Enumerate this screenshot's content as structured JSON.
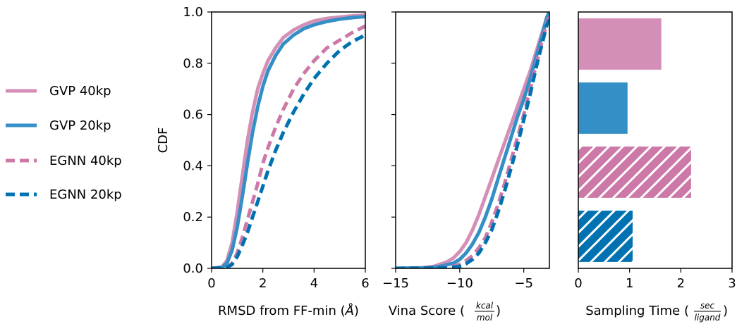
{
  "legend": {
    "placement": "left",
    "entries": [
      {
        "label": "GVP 40kp",
        "color": "#d48fb7",
        "style": "solid"
      },
      {
        "label": "GVP 20kp",
        "color": "#348fc7",
        "style": "solid"
      },
      {
        "label": "EGNN 40kp",
        "color": "#cc79a7",
        "style": "dashed"
      },
      {
        "label": "EGNN 20kp",
        "color": "#0072b2",
        "style": "dashed"
      }
    ]
  },
  "chart_data": [
    {
      "type": "line",
      "xlabel_main": "RMSD from FF-min (",
      "xlabel_unit": "Å",
      "xlabel_close": ")",
      "ylabel": "CDF",
      "xlim": [
        0,
        6
      ],
      "ylim": [
        0,
        1
      ],
      "xticks": [
        "0",
        "2",
        "4",
        "6"
      ],
      "yticks": [
        "0.0",
        "0.2",
        "0.4",
        "0.6",
        "0.8",
        "1.0"
      ],
      "series": [
        {
          "name": "GVP 40kp",
          "x": [
            0,
            0.4,
            0.6,
            0.8,
            1.0,
            1.2,
            1.4,
            1.6,
            1.8,
            2.0,
            2.2,
            2.5,
            2.8,
            3.2,
            3.6,
            4.0,
            4.5,
            5.0,
            5.5,
            6.0
          ],
          "y": [
            0,
            0.005,
            0.03,
            0.1,
            0.22,
            0.36,
            0.5,
            0.61,
            0.7,
            0.76,
            0.81,
            0.86,
            0.9,
            0.93,
            0.95,
            0.965,
            0.975,
            0.98,
            0.985,
            0.988
          ]
        },
        {
          "name": "GVP 20kp",
          "x": [
            0,
            0.4,
            0.6,
            0.8,
            1.0,
            1.2,
            1.4,
            1.6,
            1.8,
            2.0,
            2.2,
            2.5,
            2.8,
            3.2,
            3.6,
            4.0,
            4.5,
            5.0,
            5.5,
            6.0
          ],
          "y": [
            0,
            0.003,
            0.02,
            0.07,
            0.16,
            0.28,
            0.41,
            0.53,
            0.63,
            0.71,
            0.77,
            0.83,
            0.875,
            0.91,
            0.935,
            0.95,
            0.963,
            0.972,
            0.978,
            0.982
          ]
        },
        {
          "name": "EGNN 40kp",
          "x": [
            0,
            0.6,
            0.8,
            1.0,
            1.2,
            1.4,
            1.6,
            1.8,
            2.0,
            2.2,
            2.5,
            2.8,
            3.2,
            3.6,
            4.0,
            4.5,
            5.0,
            5.5,
            6.0
          ],
          "y": [
            0,
            0.005,
            0.02,
            0.06,
            0.12,
            0.19,
            0.26,
            0.33,
            0.41,
            0.47,
            0.55,
            0.62,
            0.7,
            0.76,
            0.81,
            0.86,
            0.89,
            0.92,
            0.945
          ]
        },
        {
          "name": "EGNN 20kp",
          "x": [
            0,
            0.6,
            0.8,
            1.0,
            1.2,
            1.4,
            1.6,
            1.8,
            2.0,
            2.2,
            2.5,
            2.8,
            3.2,
            3.6,
            4.0,
            4.5,
            5.0,
            5.5,
            6.0
          ],
          "y": [
            0,
            0.004,
            0.015,
            0.045,
            0.09,
            0.14,
            0.2,
            0.26,
            0.32,
            0.38,
            0.46,
            0.53,
            0.61,
            0.68,
            0.74,
            0.8,
            0.85,
            0.885,
            0.91
          ]
        }
      ]
    },
    {
      "type": "line",
      "xlabel_main": "Vina Score (",
      "xlabel_num": "kcal",
      "xlabel_den": "mol",
      "xlabel_close": ")",
      "xlim": [
        -15,
        -3
      ],
      "ylim": [
        0,
        1
      ],
      "xticks": [
        "−15",
        "−10",
        "−5"
      ],
      "xtick_values": [
        -15,
        -10,
        -5
      ],
      "series": [
        {
          "name": "GVP 40kp",
          "x": [
            -15,
            -13,
            -12,
            -11,
            -10.5,
            -10,
            -9.5,
            -9,
            -8.5,
            -8,
            -7.5,
            -7,
            -6.5,
            -6,
            -5.5,
            -5,
            -4.5,
            -4,
            -3.5,
            -3.2,
            -3
          ],
          "y": [
            0,
            0.002,
            0.008,
            0.025,
            0.04,
            0.065,
            0.1,
            0.15,
            0.21,
            0.28,
            0.35,
            0.42,
            0.49,
            0.56,
            0.63,
            0.7,
            0.77,
            0.85,
            0.93,
            0.98,
            1.0
          ]
        },
        {
          "name": "GVP 20kp",
          "x": [
            -15,
            -12.5,
            -11.5,
            -10.5,
            -10,
            -9.5,
            -9,
            -8.5,
            -8,
            -7.5,
            -7,
            -6.5,
            -6,
            -5.5,
            -5,
            -4.5,
            -4,
            -3.5,
            -3.2,
            -3
          ],
          "y": [
            0,
            0.002,
            0.008,
            0.02,
            0.035,
            0.06,
            0.095,
            0.14,
            0.2,
            0.27,
            0.35,
            0.43,
            0.51,
            0.59,
            0.66,
            0.74,
            0.83,
            0.92,
            0.98,
            1.0
          ]
        },
        {
          "name": "EGNN 40kp",
          "x": [
            -15,
            -11.5,
            -10.5,
            -10,
            -9.5,
            -9,
            -8.5,
            -8,
            -7.5,
            -7,
            -6.5,
            -6,
            -5.5,
            -5,
            -4.5,
            -4,
            -3.5,
            -3.2,
            -3
          ],
          "y": [
            0,
            0.002,
            0.008,
            0.015,
            0.03,
            0.05,
            0.08,
            0.12,
            0.18,
            0.25,
            0.33,
            0.42,
            0.51,
            0.6,
            0.7,
            0.8,
            0.9,
            0.96,
            0.98
          ]
        },
        {
          "name": "EGNN 20kp",
          "x": [
            -15,
            -11,
            -10,
            -9.5,
            -9,
            -8.5,
            -8,
            -7.5,
            -7,
            -6.5,
            -6,
            -5.5,
            -5,
            -4.5,
            -4,
            -3.5,
            -3.2,
            -3
          ],
          "y": [
            0,
            0.002,
            0.008,
            0.018,
            0.035,
            0.06,
            0.1,
            0.15,
            0.22,
            0.3,
            0.39,
            0.48,
            0.58,
            0.68,
            0.79,
            0.89,
            0.95,
            0.97
          ]
        }
      ]
    },
    {
      "type": "bar",
      "orientation": "horizontal",
      "xlabel_main": "Sampling Time (",
      "xlabel_num": "sec",
      "xlabel_den": "ligand",
      "xlabel_close": ")",
      "xlim": [
        0,
        3
      ],
      "xticks": [
        "0",
        "1",
        "2",
        "3"
      ],
      "categories": [
        "GVP 40kp",
        "GVP 20kp",
        "EGNN 40kp",
        "EGNN 20kp"
      ],
      "values": [
        1.62,
        0.96,
        2.2,
        1.06
      ],
      "hatched": [
        false,
        false,
        true,
        true
      ]
    }
  ]
}
